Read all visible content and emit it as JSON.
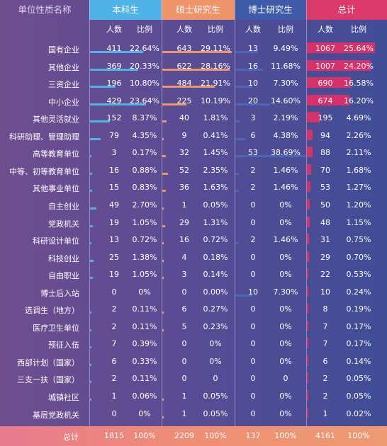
{
  "header": {
    "name_col": "单位性质名称",
    "groups": [
      "本科生",
      "硕士研究生",
      "博士研究生",
      "总计"
    ],
    "sub_count": "人数",
    "sub_ratio": "比例"
  },
  "colors": {
    "undergrad": "#4fb3e8",
    "master": "#ef9469",
    "phd": "#4a67b8",
    "total": "#d8316a",
    "total_header": "#dc3a6c",
    "phd_header": "#3f5aa8"
  },
  "chart_data": {
    "type": "table",
    "columns": [
      "单位性质名称",
      "本科生 人数",
      "本科生 比例",
      "硕士研究生 人数",
      "硕士研究生 比例",
      "博士研究生 人数",
      "博士研究生 比例",
      "总计 人数",
      "总计 比例"
    ],
    "rows": [
      {
        "name": "国有企业",
        "ug": [
          411,
          "22.64%"
        ],
        "ms": [
          643,
          "29.11%"
        ],
        "phd": [
          13,
          "9.49%"
        ],
        "total": [
          1067,
          "25.64%"
        ]
      },
      {
        "name": "其他企业",
        "ug": [
          369,
          "20.33%"
        ],
        "ms": [
          622,
          "28.16%"
        ],
        "phd": [
          16,
          "11.68%"
        ],
        "total": [
          1007,
          "24.20%"
        ]
      },
      {
        "name": "三资企业",
        "ug": [
          196,
          "10.80%"
        ],
        "ms": [
          484,
          "21.91%"
        ],
        "phd": [
          10,
          "7.30%"
        ],
        "total": [
          690,
          "16.58%"
        ]
      },
      {
        "name": "中小企业",
        "ug": [
          429,
          "23.64%"
        ],
        "ms": [
          225,
          "10.19%"
        ],
        "phd": [
          20,
          "14.60%"
        ],
        "total": [
          674,
          "16.20%"
        ]
      },
      {
        "name": "其他灵活就业",
        "ug": [
          152,
          "8.37%"
        ],
        "ms": [
          40,
          "1.81%"
        ],
        "phd": [
          3,
          "2.19%"
        ],
        "total": [
          195,
          "4.69%"
        ]
      },
      {
        "name": "科研助理、管理助理",
        "ug": [
          79,
          "4.35%"
        ],
        "ms": [
          9,
          "0.41%"
        ],
        "phd": [
          6,
          "4.38%"
        ],
        "total": [
          94,
          "2.26%"
        ]
      },
      {
        "name": "高等教育单位",
        "ug": [
          3,
          "0.17%"
        ],
        "ms": [
          32,
          "1.45%"
        ],
        "phd": [
          53,
          "38.69%"
        ],
        "total": [
          88,
          "2.11%"
        ]
      },
      {
        "name": "中等、初等教育单位",
        "ug": [
          16,
          "0.88%"
        ],
        "ms": [
          52,
          "2.35%"
        ],
        "phd": [
          2,
          "1.46%"
        ],
        "total": [
          70,
          "1.68%"
        ]
      },
      {
        "name": "其他事业单位",
        "ug": [
          15,
          "0.83%"
        ],
        "ms": [
          36,
          "1.63%"
        ],
        "phd": [
          2,
          "1.46%"
        ],
        "total": [
          53,
          "1.27%"
        ]
      },
      {
        "name": "自主创业",
        "ug": [
          49,
          "2.70%"
        ],
        "ms": [
          1,
          "0.05%"
        ],
        "phd": [
          0,
          "0%"
        ],
        "total": [
          50,
          "1.20%"
        ]
      },
      {
        "name": "党政机关",
        "ug": [
          19,
          "1.05%"
        ],
        "ms": [
          29,
          "1.31%"
        ],
        "phd": [
          0,
          "0%"
        ],
        "total": [
          48,
          "1.15%"
        ]
      },
      {
        "name": "科研设计单位",
        "ug": [
          13,
          "0.72%"
        ],
        "ms": [
          16,
          "0.72%"
        ],
        "phd": [
          2,
          "1.46%"
        ],
        "total": [
          31,
          "0.75%"
        ]
      },
      {
        "name": "科技创业",
        "ug": [
          25,
          "1.38%"
        ],
        "ms": [
          4,
          "0.18%"
        ],
        "phd": [
          0,
          "0%"
        ],
        "total": [
          29,
          "0.70%"
        ]
      },
      {
        "name": "自由职业",
        "ug": [
          19,
          "1.05%"
        ],
        "ms": [
          3,
          "0.14%"
        ],
        "phd": [
          0,
          "0%"
        ],
        "total": [
          22,
          "0.53%"
        ]
      },
      {
        "name": "博士后入站",
        "ug": [
          0,
          "0%"
        ],
        "ms": [
          0,
          "0.00%"
        ],
        "phd": [
          10,
          "7.30%"
        ],
        "total": [
          10,
          "0.24%"
        ]
      },
      {
        "name": "选调生（地方）",
        "ug": [
          2,
          "0.11%"
        ],
        "ms": [
          6,
          "0.27%"
        ],
        "phd": [
          0,
          "0%"
        ],
        "total": [
          8,
          "0.19%"
        ]
      },
      {
        "name": "医疗卫生单位",
        "ug": [
          2,
          "0.11%"
        ],
        "ms": [
          5,
          "0.23%"
        ],
        "phd": [
          0,
          "0%"
        ],
        "total": [
          7,
          "0.17%"
        ]
      },
      {
        "name": "预征入伍",
        "ug": [
          7,
          "0.39%"
        ],
        "ms": [
          0,
          "0%"
        ],
        "phd": [
          0,
          "0%"
        ],
        "total": [
          7,
          "0.17%"
        ]
      },
      {
        "name": "西部计划（国家）",
        "ug": [
          6,
          "0.33%"
        ],
        "ms": [
          0,
          "0%"
        ],
        "phd": [
          0,
          "0%"
        ],
        "total": [
          6,
          "0.14%"
        ]
      },
      {
        "name": "三支一扶（国家）",
        "ug": [
          2,
          "0.11%"
        ],
        "ms": [
          0,
          "0"
        ],
        "phd": [
          0,
          "0"
        ],
        "total": [
          2,
          "0.05%"
        ]
      },
      {
        "name": "城镇社区",
        "ug": [
          1,
          "0.06%"
        ],
        "ms": [
          1,
          "0.05%"
        ],
        "phd": [
          0,
          "0%"
        ],
        "total": [
          2,
          "0.05%"
        ]
      },
      {
        "name": "基层党政机关",
        "ug": [
          0,
          "0%"
        ],
        "ms": [
          1,
          "0.05%"
        ],
        "phd": [
          0,
          "0%"
        ],
        "total": [
          1,
          "0.02%"
        ]
      }
    ],
    "totals": {
      "name": "总计",
      "ug": [
        1815,
        "100%"
      ],
      "ms": [
        2209,
        "100%"
      ],
      "phd": [
        137,
        "100%"
      ],
      "total": [
        4161,
        "100%"
      ]
    }
  }
}
